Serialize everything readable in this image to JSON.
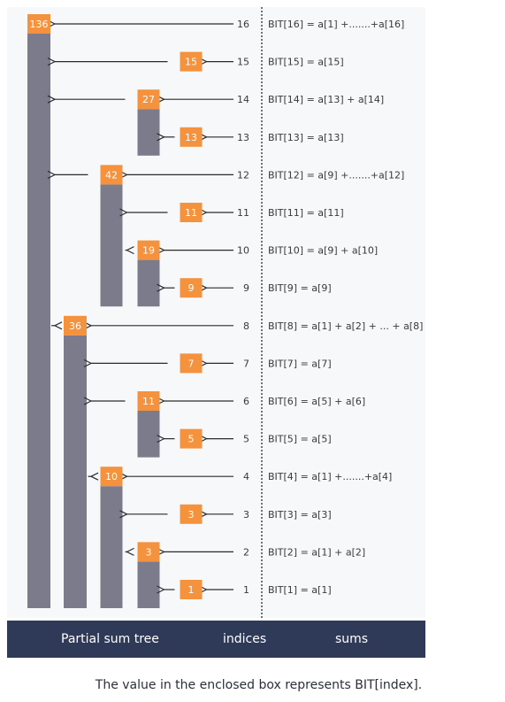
{
  "colors": {
    "orange": "#f5923e",
    "bar": "#7b7b8c",
    "arrow": "#2b2b2b",
    "text": "#3a3a3a",
    "footer": "#2e3a57"
  },
  "nodes": [
    {
      "index": 16,
      "value": "136",
      "sum": "BIT[16] = a[1] +.......+a[16]"
    },
    {
      "index": 15,
      "value": "15",
      "sum": "BIT[15] = a[15]"
    },
    {
      "index": 14,
      "value": "27",
      "sum": "BIT[14] = a[13] + a[14]"
    },
    {
      "index": 13,
      "value": "13",
      "sum": "BIT[13] = a[13]"
    },
    {
      "index": 12,
      "value": "42",
      "sum": "BIT[12] = a[9] +.......+a[12]"
    },
    {
      "index": 11,
      "value": "11",
      "sum": "BIT[11] = a[11]"
    },
    {
      "index": 10,
      "value": "19",
      "sum": "BIT[10] = a[9] + a[10]"
    },
    {
      "index": 9,
      "value": "9",
      "sum": "BIT[9] = a[9]"
    },
    {
      "index": 8,
      "value": "36",
      "sum": "BIT[8] = a[1] + a[2] + ... + a[8]"
    },
    {
      "index": 7,
      "value": "7",
      "sum": "BIT[7] = a[7]"
    },
    {
      "index": 6,
      "value": "11",
      "sum": "BIT[6] = a[5] + a[6]"
    },
    {
      "index": 5,
      "value": "5",
      "sum": "BIT[5] = a[5]"
    },
    {
      "index": 4,
      "value": "10",
      "sum": "BIT[4] = a[1] +.......+a[4]"
    },
    {
      "index": 3,
      "value": "3",
      "sum": "BIT[3] = a[3]"
    },
    {
      "index": 2,
      "value": "3",
      "sum": "BIT[2] = a[1] + a[2]"
    },
    {
      "index": 1,
      "value": "1",
      "sum": "BIT[1] = a[1]"
    }
  ],
  "footer": {
    "tree_label": "Partial sum tree",
    "indices_label": "indices",
    "sums_label": "sums"
  },
  "caption": "The value in the enclosed box represents BIT[index]."
}
